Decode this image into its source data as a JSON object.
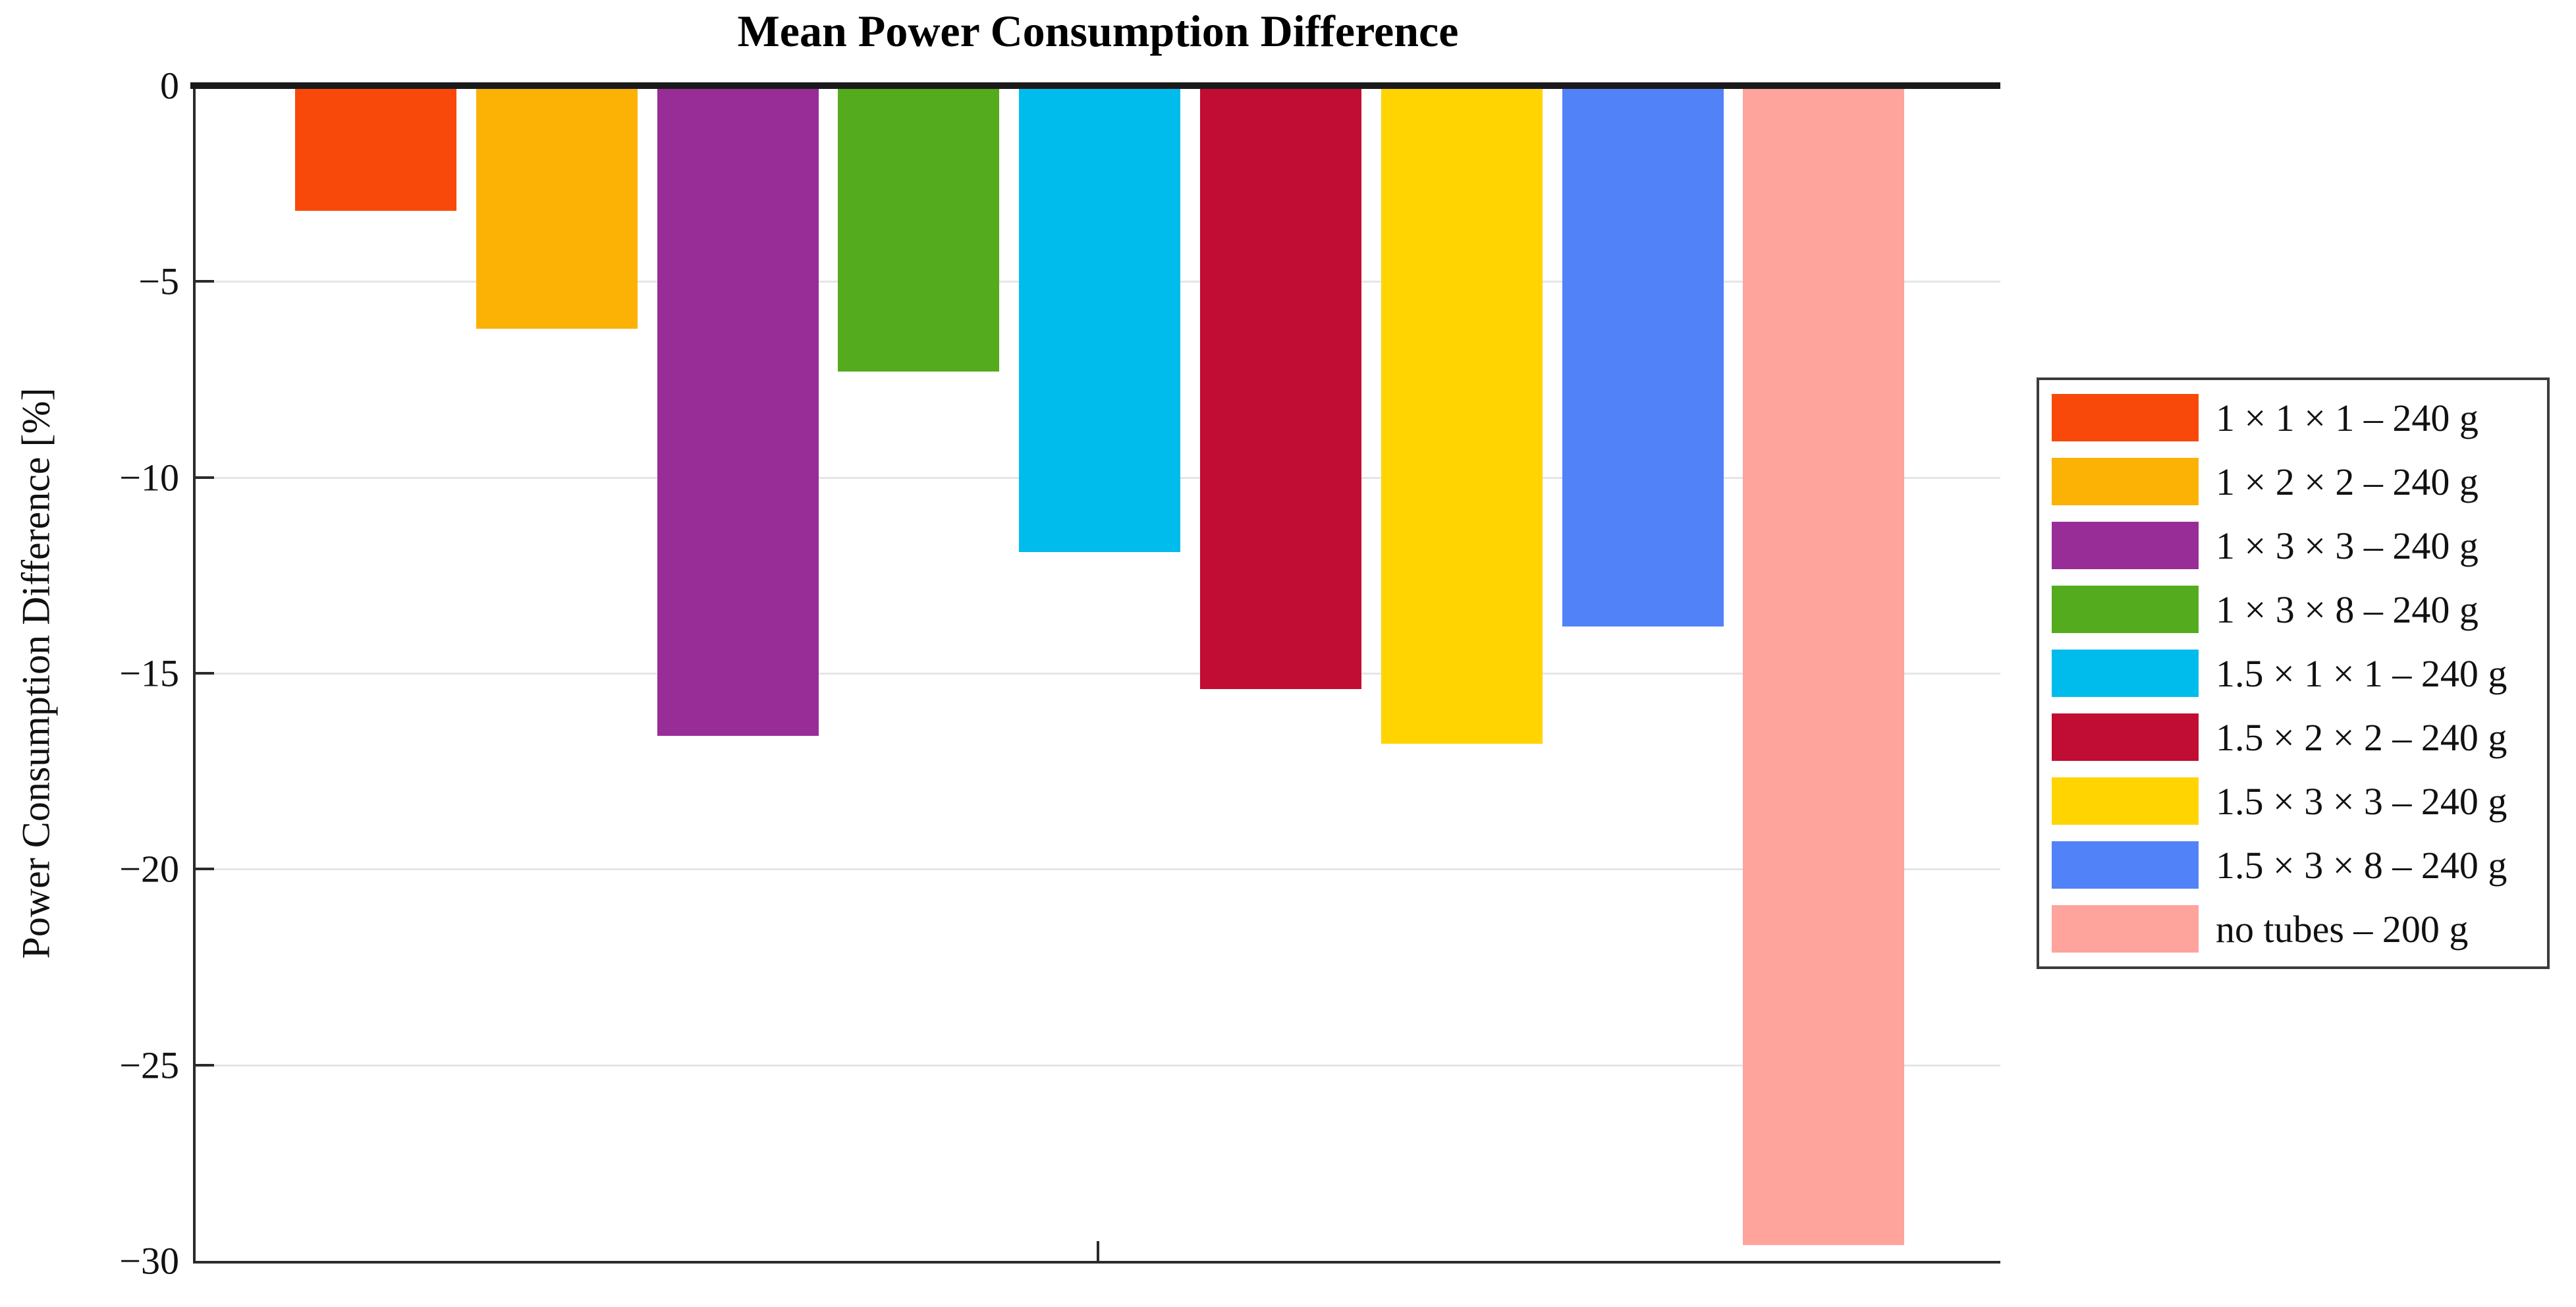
{
  "chart_data": {
    "type": "bar",
    "title": "Mean Power Consumption Difference",
    "xlabel": "",
    "ylabel": "Power Consumption Difference [%]",
    "ylim": [
      -30,
      0
    ],
    "yticks": [
      0,
      -5,
      -10,
      -15,
      -20,
      -25,
      -30
    ],
    "ytick_labels": [
      "0",
      "−5",
      "−10",
      "−15",
      "−20",
      "−25",
      "−30"
    ],
    "grid": "horizontal",
    "categories": [
      "1 × 1 × 1 – 240 g",
      "1 × 2 × 2 – 240 g",
      "1 × 3 × 3 – 240 g",
      "1 × 3 × 8 – 240 g",
      "1.5 × 1 × 1 – 240 g",
      "1.5 × 2 × 2 – 240 g",
      "1.5 × 3 × 3 – 240 g",
      "1.5 × 3 × 8 – 240 g",
      "no tubes – 200 g"
    ],
    "values": [
      -3.2,
      -6.2,
      -16.6,
      -7.3,
      -11.9,
      -15.4,
      -16.8,
      -13.8,
      -29.6
    ],
    "colors": [
      "#f8490b",
      "#fcb105",
      "#982d98",
      "#54ab1e",
      "#00bcec",
      "#c10d33",
      "#ffd400",
      "#5282f7",
      "#ffa39d"
    ],
    "legend": {
      "position": "right",
      "entries": [
        "1 × 1 × 1 – 240 g",
        "1 × 2 × 2 – 240 g",
        "1 × 3 × 3 – 240 g",
        "1 × 3 × 8 – 240 g",
        "1.5 × 1 × 1 – 240 g",
        "1.5 × 2 × 2 – 240 g",
        "1.5 × 3 × 3 – 240 g",
        "1.5 × 3 × 8 – 240 g",
        "no tubes – 200 g"
      ]
    }
  }
}
